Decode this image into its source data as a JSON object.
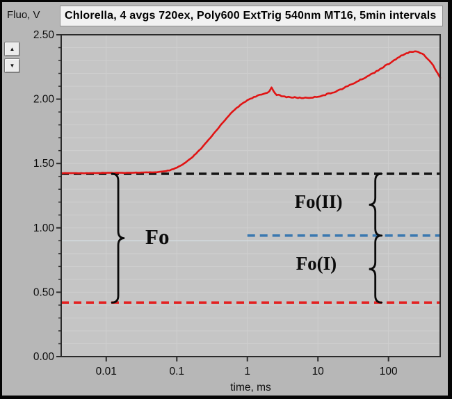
{
  "header": {
    "title": "Chlorella, 4 avgs 720ex, Poly600 ExtTrig 540nm MT16, 5min intervals"
  },
  "spinner": {
    "up_symbol": "▲",
    "down_symbol": "▼"
  },
  "chart_data": {
    "type": "line",
    "title": "Chlorella, 4 avgs 720ex, Poly600 ExtTrig 540nm MT16, 5min intervals",
    "xlabel": "time, ms",
    "ylabel": "Fluo, V",
    "x_scale": "log",
    "xlim": [
      0.0023,
      540
    ],
    "ylim": [
      0,
      2.5
    ],
    "x_ticks": [
      {
        "value": 0.01,
        "label": "0.01"
      },
      {
        "value": 0.1,
        "label": "0.1"
      },
      {
        "value": 1,
        "label": "1"
      },
      {
        "value": 10,
        "label": "10"
      },
      {
        "value": 100,
        "label": "100"
      }
    ],
    "y_ticks": [
      {
        "value": 0.0,
        "label": "0.00"
      },
      {
        "value": 0.5,
        "label": "0.50"
      },
      {
        "value": 1.0,
        "label": "1.00"
      },
      {
        "value": 1.5,
        "label": "1.50"
      },
      {
        "value": 2.0,
        "label": "2.00"
      },
      {
        "value": 2.5,
        "label": "2.50"
      }
    ],
    "y_minor_step": 0.1,
    "grid": {
      "on": true,
      "color": "#cfcfcf",
      "plot_bg": "#c5c5c5",
      "axis_color": "#2b2b2b"
    },
    "series": [
      {
        "name": "fluorescence-trace",
        "color": "#e01414",
        "points": [
          [
            0.0023,
            1.425
          ],
          [
            0.005,
            1.425
          ],
          [
            0.01,
            1.427
          ],
          [
            0.02,
            1.428
          ],
          [
            0.035,
            1.43
          ],
          [
            0.05,
            1.432
          ],
          [
            0.07,
            1.44
          ],
          [
            0.09,
            1.455
          ],
          [
            0.12,
            1.49
          ],
          [
            0.16,
            1.54
          ],
          [
            0.22,
            1.615
          ],
          [
            0.3,
            1.7
          ],
          [
            0.4,
            1.785
          ],
          [
            0.55,
            1.875
          ],
          [
            0.7,
            1.93
          ],
          [
            0.9,
            1.975
          ],
          [
            1.1,
            2.005
          ],
          [
            1.4,
            2.025
          ],
          [
            1.8,
            2.045
          ],
          [
            2.05,
            2.06
          ],
          [
            2.2,
            2.095
          ],
          [
            2.35,
            2.06
          ],
          [
            2.6,
            2.035
          ],
          [
            3.2,
            2.02
          ],
          [
            4,
            2.015
          ],
          [
            5.5,
            2.01
          ],
          [
            7,
            2.01
          ],
          [
            9,
            2.015
          ],
          [
            12,
            2.03
          ],
          [
            16,
            2.05
          ],
          [
            22,
            2.08
          ],
          [
            30,
            2.115
          ],
          [
            42,
            2.155
          ],
          [
            60,
            2.2
          ],
          [
            85,
            2.25
          ],
          [
            120,
            2.3
          ],
          [
            160,
            2.345
          ],
          [
            200,
            2.365
          ],
          [
            250,
            2.37
          ],
          [
            300,
            2.355
          ],
          [
            360,
            2.315
          ],
          [
            430,
            2.26
          ],
          [
            500,
            2.2
          ],
          [
            540,
            2.165
          ]
        ]
      }
    ],
    "reference_lines": [
      {
        "name": "cursor-gridline",
        "value": 0.9,
        "color": "#d4dbdf",
        "style": "solid",
        "from": 0.0023,
        "to": 540,
        "width": 1.5
      },
      {
        "name": "fm-black-dashed-line",
        "value": 1.42,
        "color": "#141414",
        "style": "dashed",
        "from": 0.0023,
        "to": 540,
        "width": 3.5
      },
      {
        "name": "fo-red-dashed-line",
        "value": 0.42,
        "color": "#e42020",
        "style": "dashed",
        "from": 0.0023,
        "to": 540,
        "width": 3.5
      },
      {
        "name": "foII-blue-dashed-line",
        "value": 0.94,
        "color": "#3a78b0",
        "style": "dashed",
        "from": 1.0,
        "to": 540,
        "width": 3.5
      }
    ],
    "braces": [
      {
        "name": "fo-brace",
        "t": 0.0148,
        "v_from": 0.42,
        "v_to": 1.42,
        "cusp": "right"
      },
      {
        "name": "foII-brace",
        "t": 65,
        "v_from": 0.94,
        "v_to": 1.42,
        "cusp": "left"
      },
      {
        "name": "foI-brace",
        "t": 65,
        "v_from": 0.42,
        "v_to": 0.94,
        "cusp": "left"
      }
    ],
    "annotations": [
      {
        "name": "fo-label",
        "text": "Fo",
        "t": 0.053,
        "v": 0.93
      },
      {
        "name": "foII-label",
        "text": "Fo(II)",
        "t": 10.2,
        "v": 1.21
      },
      {
        "name": "foI-label",
        "text": "Fo(I)",
        "t": 9.5,
        "v": 0.73
      }
    ]
  }
}
